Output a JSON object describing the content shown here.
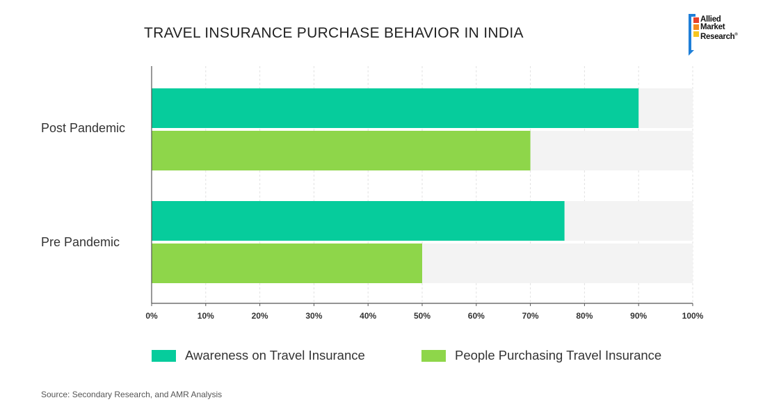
{
  "chart_data": {
    "type": "bar",
    "orientation": "horizontal",
    "title": "TRAVEL INSURANCE PURCHASE BEHAVIOR IN INDIA",
    "categories": [
      "Post Pandemic",
      "Pre Pandemic"
    ],
    "series": [
      {
        "name": "Awareness on Travel Insurance",
        "values": [
          90,
          76.3
        ],
        "color": "#06cc9c"
      },
      {
        "name": "People Purchasing Travel Insurance",
        "values": [
          70,
          50
        ],
        "color": "#8ed64a"
      }
    ],
    "xlim": [
      0,
      100
    ],
    "xticks": [
      "0%",
      "10%",
      "20%",
      "30%",
      "40%",
      "50%",
      "60%",
      "70%",
      "80%",
      "90%",
      "100%"
    ],
    "grid": true,
    "legend_position": "bottom",
    "track_color": "#f3f3f3"
  },
  "logo": {
    "lines": [
      "Allied",
      "Market",
      "Research"
    ],
    "colors": [
      "#e8412a",
      "#f58a1f",
      "#f5c51f"
    ]
  },
  "source": "Source: Secondary Research, and AMR Analysis"
}
